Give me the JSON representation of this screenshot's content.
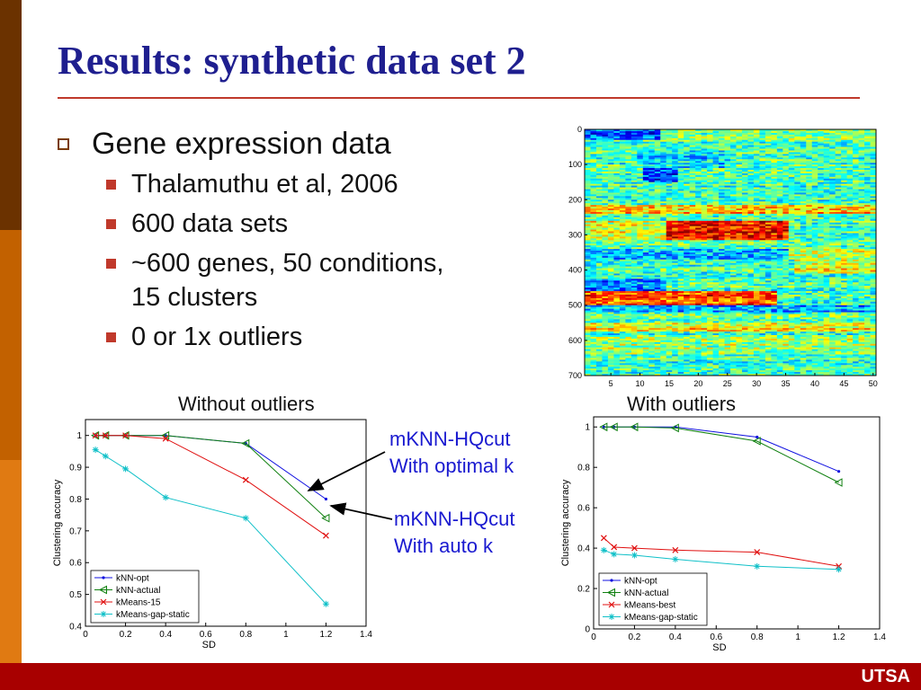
{
  "slide": {
    "title": "Results: synthetic data set 2",
    "footer_brand": "UTSA",
    "colors": {
      "title": "#1f1f8f",
      "rule": "#c0392b",
      "footer": "#a80000",
      "band": [
        "#6b3200",
        "#c26100",
        "#e07a12",
        "#d13a00"
      ]
    }
  },
  "bullets": {
    "main": "Gene expression data",
    "sub": [
      "Thalamuthu et al, 2006",
      "600 data sets",
      "~600 genes, 50 conditions, 15 clusters",
      "0 or 1x outliers"
    ]
  },
  "captions": {
    "left": "Without outliers",
    "right": "With outliers"
  },
  "annotations": {
    "first": [
      "mKNN-HQcut",
      "With optimal k"
    ],
    "second": [
      "mKNN-HQcut",
      "With auto k"
    ]
  },
  "chart_data": [
    {
      "type": "heatmap",
      "title": "",
      "x_ticks": [
        "5",
        "10",
        "15",
        "20",
        "25",
        "30",
        "35",
        "40",
        "45",
        "50"
      ],
      "y_ticks": [
        "0",
        "100",
        "200",
        "300",
        "400",
        "500",
        "600",
        "700"
      ],
      "xlim": [
        0.5,
        50.5
      ],
      "ylim": [
        0,
        700
      ],
      "colormap": "jet",
      "note": "gene x condition expression matrix, 700 rows x 50 columns"
    },
    {
      "type": "line",
      "xlabel": "SD",
      "ylabel": "Clustering accuracy",
      "xlim": [
        0,
        1.4
      ],
      "ylim": [
        0.4,
        1.05
      ],
      "x_ticks": [
        "0",
        "0.2",
        "0.4",
        "0.6",
        "0.8",
        "1",
        "1.2",
        "1.4"
      ],
      "y_ticks": [
        "0.4",
        "0.5",
        "0.6",
        "0.7",
        "0.8",
        "0.9",
        "1"
      ],
      "legend_position": "bottom-left",
      "series": [
        {
          "name": "kNN-opt",
          "color": "#1010e0",
          "marker": "dot",
          "x": [
            0.05,
            0.1,
            0.2,
            0.4,
            0.8,
            1.2
          ],
          "y": [
            1.0,
            1.0,
            1.0,
            1.0,
            0.975,
            0.8
          ]
        },
        {
          "name": "kNN-actual",
          "color": "#108010",
          "marker": "triangle-left",
          "x": [
            0.05,
            0.1,
            0.2,
            0.4,
            0.8,
            1.2
          ],
          "y": [
            1.0,
            1.0,
            1.0,
            1.0,
            0.975,
            0.74
          ]
        },
        {
          "name": "kMeans-15",
          "color": "#e01010",
          "marker": "x",
          "x": [
            0.05,
            0.1,
            0.2,
            0.4,
            0.8,
            1.2
          ],
          "y": [
            1.0,
            1.0,
            1.0,
            0.99,
            0.86,
            0.685
          ]
        },
        {
          "name": "kMeans-gap-static",
          "color": "#10c0c8",
          "marker": "star",
          "x": [
            0.05,
            0.1,
            0.2,
            0.4,
            0.8,
            1.2
          ],
          "y": [
            0.955,
            0.935,
            0.895,
            0.805,
            0.74,
            0.47
          ]
        }
      ]
    },
    {
      "type": "line",
      "xlabel": "SD",
      "ylabel": "Clustering accuracy",
      "xlim": [
        0,
        1.4
      ],
      "ylim": [
        0,
        1.05
      ],
      "x_ticks": [
        "0",
        "0.2",
        "0.4",
        "0.6",
        "0.8",
        "1",
        "1.2",
        "1.4"
      ],
      "y_ticks": [
        "0",
        "0.2",
        "0.4",
        "0.6",
        "0.8",
        "1"
      ],
      "legend_position": "bottom-left",
      "series": [
        {
          "name": "kNN-opt",
          "color": "#1010e0",
          "marker": "dot",
          "x": [
            0.05,
            0.1,
            0.2,
            0.4,
            0.8,
            1.2
          ],
          "y": [
            1.0,
            1.0,
            1.0,
            1.0,
            0.95,
            0.78
          ]
        },
        {
          "name": "kNN-actual",
          "color": "#108010",
          "marker": "triangle-left",
          "x": [
            0.05,
            0.1,
            0.2,
            0.4,
            0.8,
            1.2
          ],
          "y": [
            1.0,
            1.0,
            1.0,
            0.995,
            0.93,
            0.725
          ]
        },
        {
          "name": "kMeans-best",
          "color": "#e01010",
          "marker": "x",
          "x": [
            0.05,
            0.1,
            0.2,
            0.4,
            0.8,
            1.2
          ],
          "y": [
            0.45,
            0.405,
            0.4,
            0.39,
            0.38,
            0.31
          ]
        },
        {
          "name": "kMeans-gap-static",
          "color": "#10c0c8",
          "marker": "star",
          "x": [
            0.05,
            0.1,
            0.2,
            0.4,
            0.8,
            1.2
          ],
          "y": [
            0.39,
            0.37,
            0.365,
            0.345,
            0.31,
            0.295
          ]
        }
      ]
    }
  ]
}
